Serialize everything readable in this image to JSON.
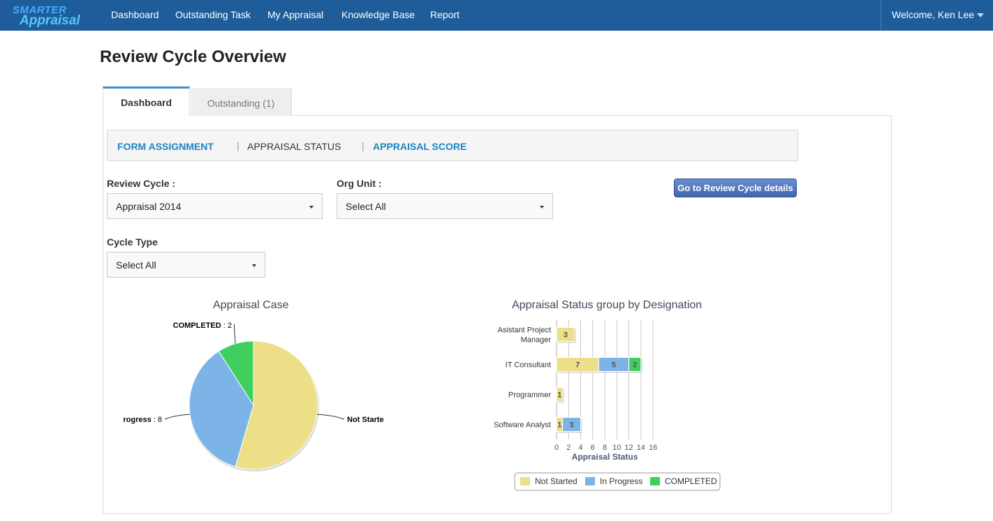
{
  "navbar": {
    "brand_line1": "SMARTER",
    "brand_line2": "Appraisal",
    "items": [
      "Dashboard",
      "Outstanding Task",
      "My Appraisal",
      "Knowledge Base",
      "Report"
    ],
    "welcome": "Welcome, Ken Lee"
  },
  "page": {
    "title": "Review Cycle Overview"
  },
  "tabs": [
    {
      "label": "Dashboard",
      "active": true
    },
    {
      "label": "Outstanding (1)",
      "active": false
    }
  ],
  "subnav": {
    "items": [
      "FORM ASSIGNMENT",
      "APPRAISAL STATUS",
      "APPRAISAL SCORE"
    ],
    "active": "APPRAISAL STATUS",
    "separator": "|"
  },
  "filters": {
    "review_cycle_label": "Review Cycle :",
    "review_cycle_value": "Appraisal 2014",
    "org_unit_label": "Org Unit :",
    "org_unit_value": "Select All",
    "cycle_type_label": "Cycle Type",
    "cycle_type_value": "Select All"
  },
  "go_button": "Go to Review Cycle details",
  "colors": {
    "navbar": "#1f5d9a",
    "not_started": "#ecdf87",
    "in_progress": "#7db4e8",
    "completed": "#3fcf5f"
  },
  "chart_data": [
    {
      "type": "pie",
      "title": "Appraisal Case",
      "slices": [
        {
          "label": "Not Started",
          "display_label": "Not Starte",
          "value": 12,
          "color": "#ecdf87"
        },
        {
          "label": "In Progress",
          "display_label": "rogress",
          "value": 8,
          "color": "#7db4e8"
        },
        {
          "label": "COMPLETED",
          "display_label": "COMPLETED",
          "value": 2,
          "color": "#3fcf5f"
        }
      ]
    },
    {
      "type": "bar",
      "orientation": "horizontal",
      "stacked": true,
      "title": "Appraisal Status group by Designation",
      "xlabel": "Appraisal Status",
      "xlim": [
        0,
        16
      ],
      "xticks": [
        0,
        2,
        4,
        6,
        8,
        10,
        12,
        14,
        16
      ],
      "categories": [
        "Asistant Project Manager",
        "IT Consultant",
        "Programmer",
        "Software Analyst"
      ],
      "category_lines": [
        [
          "Asistant Project",
          "Manager"
        ],
        [
          "IT Consultant"
        ],
        [
          "Programmer"
        ],
        [
          "Software Analyst"
        ]
      ],
      "series": [
        {
          "name": "Not Started",
          "values": [
            3,
            7,
            1,
            1
          ],
          "color": "#ecdf87"
        },
        {
          "name": "In Progress",
          "values": [
            0,
            5,
            0,
            3
          ],
          "color": "#7db4e8"
        },
        {
          "name": "COMPLETED",
          "values": [
            0,
            2,
            0,
            0
          ],
          "color": "#3fcf5f"
        }
      ],
      "legend": "bottom-center",
      "grid": true
    }
  ]
}
